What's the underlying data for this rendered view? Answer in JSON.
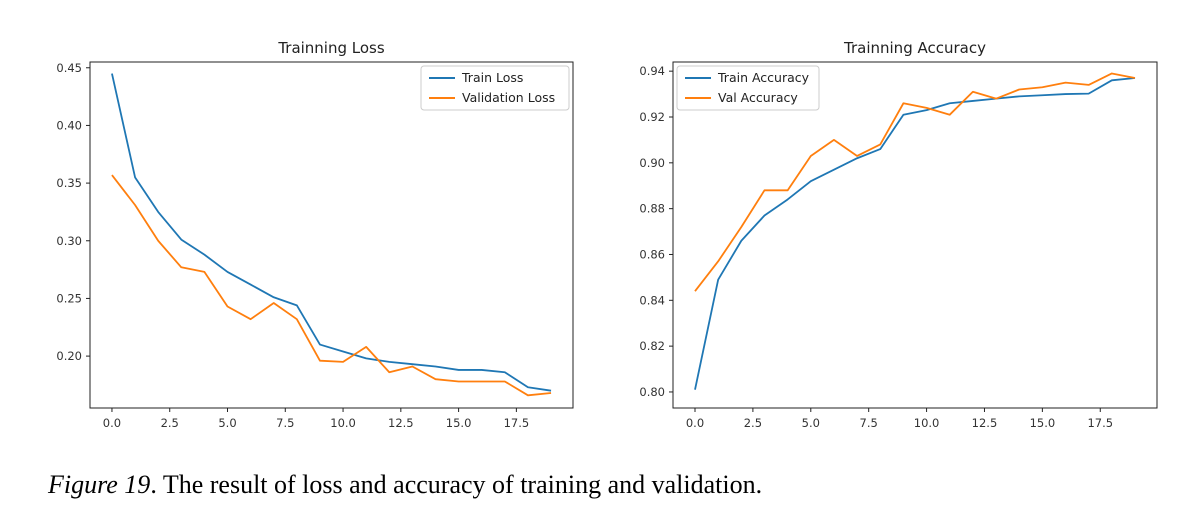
{
  "caption": {
    "label": "Figure 19",
    "text": ". The result of loss and accuracy of training and validation."
  },
  "chart_data": [
    {
      "type": "line",
      "title": "Trainning Loss",
      "xlabel": "",
      "ylabel": "",
      "xlim": [
        -0.95,
        19.95
      ],
      "ylim": [
        0.155,
        0.455
      ],
      "xticks": [
        0,
        2.5,
        5,
        7.5,
        10,
        12.5,
        15,
        17.5
      ],
      "xtick_labels": [
        "0.0",
        "2.5",
        "5.0",
        "7.5",
        "10.0",
        "12.5",
        "15.0",
        "17.5"
      ],
      "yticks": [
        0.2,
        0.25,
        0.3,
        0.35,
        0.4,
        0.45
      ],
      "ytick_labels": [
        "0.20",
        "0.25",
        "0.30",
        "0.35",
        "0.40",
        "0.45"
      ],
      "grid": false,
      "legend_position": "top-right",
      "x": [
        0,
        1,
        2,
        3,
        4,
        5,
        6,
        7,
        8,
        9,
        10,
        11,
        12,
        13,
        14,
        15,
        16,
        17,
        18,
        19
      ],
      "series": [
        {
          "name": "Train Loss",
          "color": "#1f77b4",
          "values": [
            0.445,
            0.355,
            0.325,
            0.301,
            0.288,
            0.273,
            0.262,
            0.251,
            0.244,
            0.21,
            0.204,
            0.198,
            0.195,
            0.193,
            0.191,
            0.188,
            0.188,
            0.186,
            0.173,
            0.17
          ]
        },
        {
          "name": "Validation Loss",
          "color": "#ff7f0e",
          "values": [
            0.357,
            0.331,
            0.3,
            0.277,
            0.273,
            0.243,
            0.232,
            0.246,
            0.232,
            0.196,
            0.195,
            0.208,
            0.186,
            0.191,
            0.18,
            0.178,
            0.178,
            0.178,
            0.166,
            0.168
          ]
        }
      ]
    },
    {
      "type": "line",
      "title": "Trainning Accuracy",
      "xlabel": "",
      "ylabel": "",
      "xlim": [
        -0.95,
        19.95
      ],
      "ylim": [
        0.793,
        0.944
      ],
      "xticks": [
        0,
        2.5,
        5,
        7.5,
        10,
        12.5,
        15,
        17.5
      ],
      "xtick_labels": [
        "0.0",
        "2.5",
        "5.0",
        "7.5",
        "10.0",
        "12.5",
        "15.0",
        "17.5"
      ],
      "yticks": [
        0.8,
        0.82,
        0.84,
        0.86,
        0.88,
        0.9,
        0.92,
        0.94
      ],
      "ytick_labels": [
        "0.80",
        "0.82",
        "0.84",
        "0.86",
        "0.88",
        "0.90",
        "0.92",
        "0.94"
      ],
      "grid": false,
      "legend_position": "top-left",
      "x": [
        0,
        1,
        2,
        3,
        4,
        5,
        6,
        7,
        8,
        9,
        10,
        11,
        12,
        13,
        14,
        15,
        16,
        17,
        18,
        19
      ],
      "series": [
        {
          "name": "Train Accuracy",
          "color": "#1f77b4",
          "values": [
            0.801,
            0.849,
            0.866,
            0.877,
            0.884,
            0.892,
            0.897,
            0.902,
            0.906,
            0.921,
            0.923,
            0.926,
            0.927,
            0.928,
            0.929,
            0.9295,
            0.93,
            0.9302,
            0.936,
            0.937
          ]
        },
        {
          "name": "Val Accuracy",
          "color": "#ff7f0e",
          "values": [
            0.844,
            0.857,
            0.872,
            0.888,
            0.888,
            0.903,
            0.91,
            0.903,
            0.908,
            0.926,
            0.924,
            0.921,
            0.931,
            0.928,
            0.932,
            0.933,
            0.935,
            0.934,
            0.939,
            0.937
          ]
        }
      ]
    }
  ]
}
